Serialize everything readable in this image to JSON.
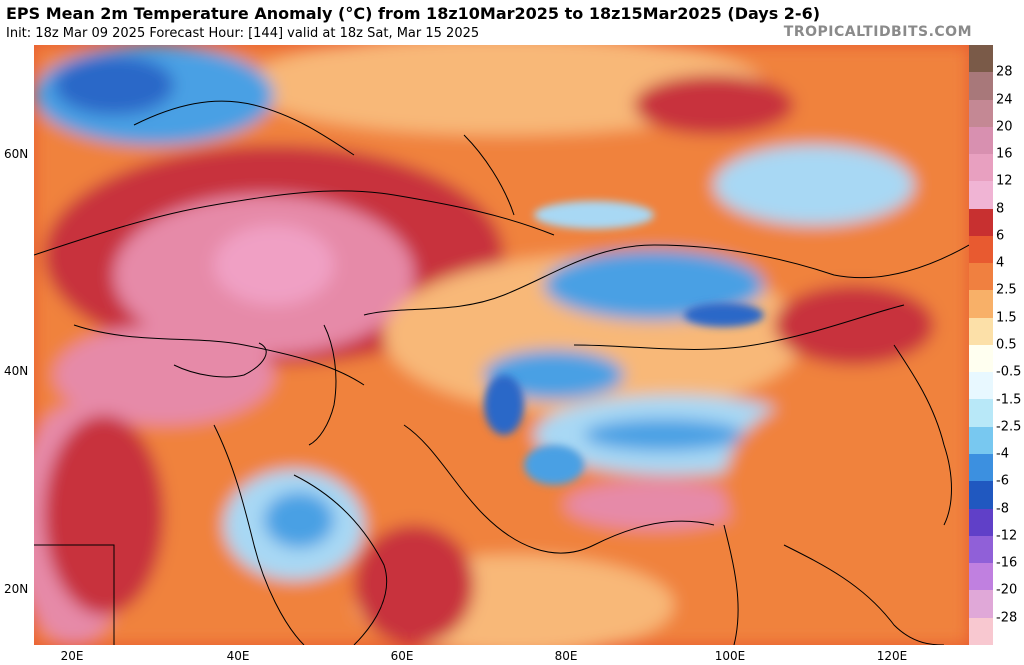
{
  "header": {
    "title": "EPS Mean 2m Temperature Anomaly (°C) from 18z10Mar2025 to 18z15Mar2025 (Days 2-6)",
    "subtitle": "Init: 18z Mar 09 2025   Forecast Hour: [144]   valid at 18z Sat, Mar 15 2025",
    "brand": "TROPICALTIDBITS.COM"
  },
  "axes": {
    "lat_labels": [
      "60N",
      "40N",
      "20N"
    ],
    "lon_labels": [
      "20E",
      "40E",
      "60E",
      "80E",
      "100E",
      "120E"
    ]
  },
  "colorbar": {
    "labels": [
      "28",
      "24",
      "20",
      "16",
      "12",
      "8",
      "6",
      "4",
      "2.5",
      "1.5",
      "0.5",
      "-0.5",
      "-1.5",
      "-2.5",
      "-4",
      "-6",
      "-8",
      "-12",
      "-16",
      "-20",
      "-28"
    ],
    "colors": [
      "#7a5a48",
      "#a8787a",
      "#c48894",
      "#d890b0",
      "#e8a0c0",
      "#f0b4d4",
      "#c83030",
      "#e85a30",
      "#f08040",
      "#f8b068",
      "#fce0a8",
      "#fffff0",
      "#e8f8ff",
      "#b8e8f8",
      "#78c8f0",
      "#3c90e0",
      "#2058c0",
      "#6040c8",
      "#9060d8",
      "#c080e0",
      "#e0a8d8",
      "#f8c8d0"
    ]
  },
  "map": {
    "colors": {
      "warm_strong": "#c8303c",
      "warm_pink": "#e68aa8",
      "warm_pink_light": "#f0a0c4",
      "warm_orange": "#f0823c",
      "warm_light": "#f8b878",
      "cool_light": "#a8d8f4",
      "cool": "#4aa0e4",
      "cool_dark": "#2a68c8",
      "border": "#000000"
    }
  }
}
